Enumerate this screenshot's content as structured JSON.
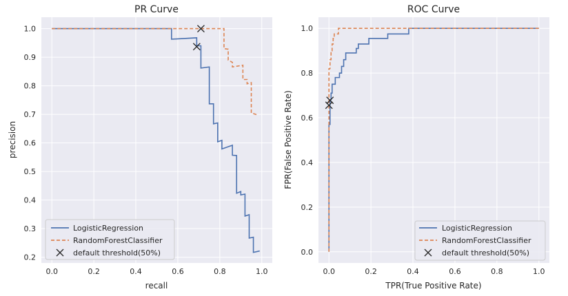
{
  "chart_data": [
    {
      "type": "line",
      "title": "PR Curve",
      "xlabel": "recall",
      "ylabel": "precision",
      "xlim": [
        -0.05,
        1.05
      ],
      "ylim": [
        0.18,
        1.04
      ],
      "xticks": [
        0.0,
        0.2,
        0.4,
        0.6,
        0.8,
        1.0
      ],
      "yticks": [
        0.2,
        0.3,
        0.4,
        0.5,
        0.6,
        0.7,
        0.8,
        0.9,
        1.0
      ],
      "tick_labels_x": [
        "0.0",
        "0.2",
        "0.4",
        "0.6",
        "0.8",
        "1.0"
      ],
      "tick_labels_y": [
        "0.2",
        "0.3",
        "0.4",
        "0.5",
        "0.6",
        "0.7",
        "0.8",
        "0.9",
        "1.0"
      ],
      "legend_position": "lower-left",
      "series": [
        {
          "name": "LogisticRegression",
          "color": "#4c72b0",
          "dash": "solid",
          "points": [
            [
              0.0,
              1.0
            ],
            [
              0.57,
              1.0
            ],
            [
              0.57,
              0.963
            ],
            [
              0.69,
              0.968
            ],
            [
              0.69,
              0.94
            ],
            [
              0.71,
              0.94
            ],
            [
              0.71,
              0.862
            ],
            [
              0.75,
              0.866
            ],
            [
              0.75,
              0.737
            ],
            [
              0.77,
              0.737
            ],
            [
              0.77,
              0.667
            ],
            [
              0.79,
              0.67
            ],
            [
              0.79,
              0.604
            ],
            [
              0.81,
              0.609
            ],
            [
              0.81,
              0.579
            ],
            [
              0.86,
              0.592
            ],
            [
              0.86,
              0.557
            ],
            [
              0.88,
              0.556
            ],
            [
              0.88,
              0.424
            ],
            [
              0.9,
              0.43
            ],
            [
              0.9,
              0.418
            ],
            [
              0.92,
              0.421
            ],
            [
              0.92,
              0.344
            ],
            [
              0.94,
              0.349
            ],
            [
              0.94,
              0.267
            ],
            [
              0.96,
              0.27
            ],
            [
              0.96,
              0.217
            ],
            [
              0.99,
              0.222
            ]
          ]
        },
        {
          "name": "RandomForestClassifier",
          "color": "#dd8452",
          "dash": "dashed",
          "points": [
            [
              0.0,
              1.0
            ],
            [
              0.82,
              1.0
            ],
            [
              0.82,
              0.93
            ],
            [
              0.84,
              0.928
            ],
            [
              0.84,
              0.89
            ],
            [
              0.86,
              0.882
            ],
            [
              0.86,
              0.866
            ],
            [
              0.91,
              0.872
            ],
            [
              0.91,
              0.822
            ],
            [
              0.93,
              0.822
            ],
            [
              0.93,
              0.807
            ],
            [
              0.95,
              0.811
            ],
            [
              0.95,
              0.705
            ],
            [
              0.98,
              0.698
            ]
          ]
        }
      ],
      "markers": {
        "name": "default threshold(50%)",
        "color": "#262626",
        "points": [
          [
            0.71,
            1.0
          ],
          [
            0.69,
            0.937
          ]
        ]
      }
    },
    {
      "type": "line",
      "title": "ROC Curve",
      "xlabel": "TPR(True Positive Rate)",
      "ylabel": "FPR(False Positive Rate)",
      "xlim": [
        -0.05,
        1.05
      ],
      "ylim": [
        -0.05,
        1.05
      ],
      "xticks": [
        0.0,
        0.2,
        0.4,
        0.6,
        0.8,
        1.0
      ],
      "yticks": [
        0.0,
        0.2,
        0.4,
        0.6,
        0.8,
        1.0
      ],
      "tick_labels_x": [
        "0.0",
        "0.2",
        "0.4",
        "0.6",
        "0.8",
        "1.0"
      ],
      "tick_labels_y": [
        "0.0",
        "0.2",
        "0.4",
        "0.6",
        "0.8",
        "1.0"
      ],
      "legend_position": "lower-right",
      "series": [
        {
          "name": "LogisticRegression",
          "color": "#4c72b0",
          "dash": "solid",
          "points": [
            [
              0.0,
              0.0
            ],
            [
              0.0,
              0.57
            ],
            [
              0.005,
              0.57
            ],
            [
              0.005,
              0.68
            ],
            [
              0.01,
              0.68
            ],
            [
              0.01,
              0.71
            ],
            [
              0.015,
              0.71
            ],
            [
              0.015,
              0.75
            ],
            [
              0.03,
              0.75
            ],
            [
              0.03,
              0.78
            ],
            [
              0.05,
              0.78
            ],
            [
              0.05,
              0.8
            ],
            [
              0.06,
              0.8
            ],
            [
              0.06,
              0.83
            ],
            [
              0.07,
              0.83
            ],
            [
              0.07,
              0.86
            ],
            [
              0.08,
              0.86
            ],
            [
              0.08,
              0.89
            ],
            [
              0.13,
              0.89
            ],
            [
              0.13,
              0.91
            ],
            [
              0.14,
              0.91
            ],
            [
              0.14,
              0.93
            ],
            [
              0.19,
              0.93
            ],
            [
              0.19,
              0.955
            ],
            [
              0.28,
              0.955
            ],
            [
              0.28,
              0.975
            ],
            [
              0.38,
              0.975
            ],
            [
              0.38,
              1.0
            ],
            [
              1.0,
              1.0
            ]
          ]
        },
        {
          "name": "RandomForestClassifier",
          "color": "#dd8452",
          "dash": "dashed",
          "points": [
            [
              0.0,
              0.0
            ],
            [
              0.0,
              0.82
            ],
            [
              0.005,
              0.82
            ],
            [
              0.005,
              0.86
            ],
            [
              0.01,
              0.86
            ],
            [
              0.01,
              0.9
            ],
            [
              0.015,
              0.9
            ],
            [
              0.015,
              0.93
            ],
            [
              0.02,
              0.93
            ],
            [
              0.02,
              0.955
            ],
            [
              0.025,
              0.955
            ],
            [
              0.025,
              0.975
            ],
            [
              0.045,
              0.975
            ],
            [
              0.045,
              1.0
            ],
            [
              1.0,
              1.0
            ]
          ]
        }
      ],
      "markers": {
        "name": "default threshold(50%)",
        "color": "#262626",
        "points": [
          [
            0.005,
            0.678
          ],
          [
            0.0,
            0.656
          ]
        ]
      }
    }
  ]
}
